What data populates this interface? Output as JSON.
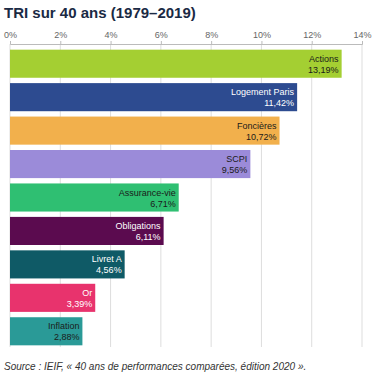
{
  "chart_data": {
    "type": "bar",
    "orientation": "horizontal",
    "title": "TRI sur 40 ans (1979–2019)",
    "source": "Source : IEIF, « 40 ans de performances comparées, édition 2020 ».",
    "categories": [
      "Actions",
      "Logement Paris",
      "Foncières",
      "SCPI",
      "Assurance-vie",
      "Obligations",
      "Livret A",
      "Or",
      "Inflation"
    ],
    "values": [
      13.19,
      11.42,
      10.72,
      9.56,
      6.71,
      6.11,
      4.56,
      3.39,
      2.88
    ],
    "value_labels": [
      "13,19%",
      "11,42%",
      "10,72%",
      "9,56%",
      "6,71%",
      "6,11%",
      "4,56%",
      "3,39%",
      "2,88%"
    ],
    "colors": [
      "#a4cf32",
      "#2d4b90",
      "#f2b04c",
      "#9b8bd9",
      "#2fbf72",
      "#5b0b4f",
      "#0f5a66",
      "#e8336d",
      "#2a9a97"
    ],
    "xlim": [
      0,
      14
    ],
    "xticks": [
      {
        "value": 0,
        "label": "0%"
      },
      {
        "value": 2,
        "label": "2%"
      },
      {
        "value": 4,
        "label": "4%"
      },
      {
        "value": 6,
        "label": "6%"
      },
      {
        "value": 8,
        "label": "8%"
      },
      {
        "value": 10,
        "label": "10%"
      },
      {
        "value": 12,
        "label": "12%"
      },
      {
        "value": 14,
        "label": "14%"
      }
    ],
    "grid": true,
    "data_labels": true,
    "tick_labels": "x"
  }
}
